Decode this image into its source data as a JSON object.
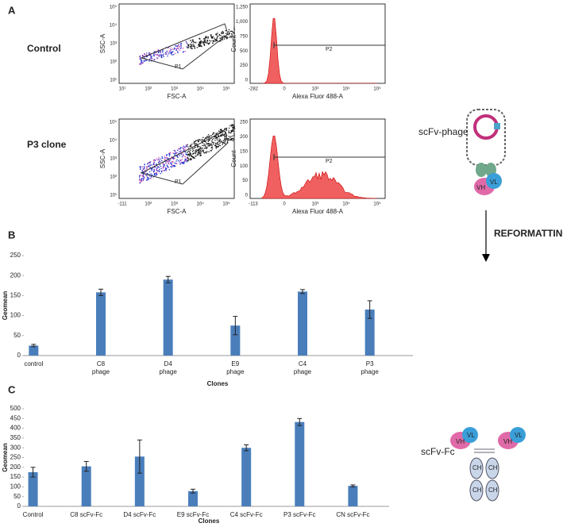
{
  "panel_labels": [
    "A",
    "B",
    "C"
  ],
  "flow": {
    "rows": [
      {
        "label": "Control",
        "scatter": {
          "ylabel": "SSC-A",
          "xlabel": "FSC-A",
          "gate": "P1",
          "yticks": [
            "10⁵",
            "10⁴",
            "10³",
            "10²",
            "10¹"
          ],
          "xticks": [
            "10¹",
            "10²",
            "10³",
            "10⁴",
            "10⁵"
          ]
        },
        "histogram": {
          "ylabel": "Count",
          "xlabel": "Alexa Fluor 488-A",
          "gate": "P2",
          "yticks": [
            "1,250",
            "1,000",
            "750",
            "500",
            "250",
            "0"
          ],
          "xticks": [
            "-282",
            "0",
            "10³",
            "10⁴",
            "10⁵"
          ]
        }
      },
      {
        "label": "P3 clone",
        "scatter": {
          "ylabel": "SSC-A",
          "xlabel": "FSC-A",
          "gate": "P1",
          "yticks": [
            "10⁵",
            "10⁴",
            "10³",
            "10²",
            "10¹"
          ],
          "xticks": [
            "-111",
            "10²",
            "10³",
            "10⁴",
            "10⁵"
          ]
        },
        "histogram": {
          "ylabel": "Count",
          "xlabel": "Alexa Fluor 488-A",
          "gate": "P2",
          "yticks": [
            "250",
            "200",
            "150",
            "100",
            "50",
            "0"
          ],
          "xticks": [
            "-113",
            "0",
            "10³",
            "10⁴",
            "10⁵"
          ]
        }
      }
    ]
  },
  "chart_data": [
    {
      "type": "bar",
      "ylabel": "Geomean",
      "xlabel": "Clones",
      "color": "#4a7ebb",
      "categories": [
        "control",
        "C8\nphage",
        "D4\nphage",
        "E9\nphage",
        "C4\nphage",
        "P3\nphage"
      ],
      "values": [
        25,
        158,
        190,
        75,
        160,
        115
      ],
      "errors": [
        3,
        8,
        8,
        23,
        5,
        22
      ],
      "ylim": [
        0,
        250
      ],
      "yticks": [
        0,
        50,
        100,
        150,
        200,
        250
      ]
    },
    {
      "type": "bar",
      "ylabel": "Geomean",
      "xlabel": "Clones",
      "color": "#4a7ebb",
      "categories": [
        "Control",
        "C8 scFv-Fc",
        "D4 scFv-Fc",
        "E9 scFv-Fc",
        "C4 scFv-Fc",
        "P3 scFv-Fc",
        "CN scFv-Fc"
      ],
      "values": [
        175,
        205,
        255,
        78,
        300,
        432,
        105
      ],
      "errors": [
        25,
        25,
        85,
        10,
        15,
        18,
        5
      ],
      "ylim": [
        0,
        500
      ],
      "yticks": [
        0,
        50,
        100,
        150,
        200,
        250,
        300,
        350,
        400,
        450,
        500
      ]
    }
  ],
  "diagram": {
    "phage_label": "scFv-phage",
    "arrow_label": "REFORMATTING",
    "fc_label": "scFv-Fc",
    "phage_domains": [
      "VH",
      "VL"
    ],
    "fc_domains": [
      "VH",
      "VL",
      "VH",
      "VL",
      "CH",
      "CH",
      "CH",
      "CH"
    ]
  }
}
